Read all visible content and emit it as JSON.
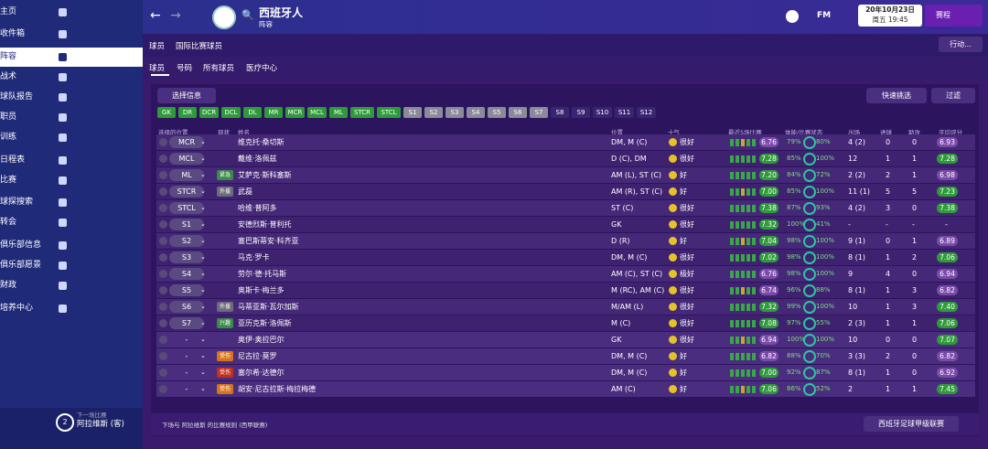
{
  "sidebar": {
    "items": [
      "主页",
      "收件箱",
      "阵容",
      "战术",
      "球队报告",
      "职员",
      "训练",
      "日程表",
      "比赛",
      "球探搜索",
      "转会",
      "俱乐部信息",
      "俱乐部愿景",
      "财政",
      "培养中心"
    ],
    "selected": 2,
    "next_match": {
      "label": "下一场比赛",
      "opponent": "阿拉维斯 (客)",
      "count": "2"
    }
  },
  "topbar": {
    "club": "西班牙人",
    "page": "阵容",
    "logo": "FM",
    "date": "20年10月23日",
    "time": "周五 19:45",
    "continue": "赛程"
  },
  "tabs": {
    "main": [
      "球员",
      "国际比赛球员"
    ],
    "sub": [
      "球员",
      "号码",
      "所有球员",
      "医疗中心"
    ],
    "action": "行动..."
  },
  "filters": {
    "select_info": "选择信息",
    "quick_pick": "快速挑选",
    "filter": "过滤",
    "chips_selected": [
      "GK",
      "DR",
      "DCR",
      "DCL",
      "DL",
      "MR",
      "MCR",
      "MCL",
      "ML",
      "STCR",
      "STCL"
    ],
    "chips_subs": [
      "S1",
      "S2",
      "S3",
      "S4",
      "S5",
      "S6",
      "S7"
    ],
    "chips_empty": [
      "S8",
      "S9",
      "S10",
      "S11",
      "S12"
    ]
  },
  "table": {
    "headers": [
      "选择的位置",
      "现状",
      "姓名",
      "位置",
      "士气",
      "最近5场比赛",
      "体能/比赛状态",
      "出场",
      "进球",
      "助攻",
      "平均评分"
    ],
    "rows": [
      {
        "slot": "MCR",
        "name": "维克托·桑切斯",
        "position": "DM, M (C)",
        "morale": "很好",
        "form": "6.76",
        "fitness": "79%",
        "condition": "80%",
        "apps": "4 (2)",
        "goals": "0",
        "assists": "0",
        "rating": "6.93"
      },
      {
        "slot": "MCL",
        "name": "戴维·洛佩兹",
        "position": "D (C), DM",
        "morale": "很好",
        "form": "7.28",
        "fitness": "85%",
        "condition": "100%",
        "apps": "12",
        "goals": "1",
        "assists": "1",
        "rating": "7.28"
      },
      {
        "slot": "ML",
        "status": "紧急",
        "name": "艾萨克·斯科塞斯",
        "position": "AM (L), ST (C)",
        "morale": "好",
        "form": "7.20",
        "fitness": "84%",
        "condition": "72%",
        "apps": "2 (2)",
        "goals": "2",
        "assists": "1",
        "rating": "6.98"
      },
      {
        "slot": "STCR",
        "status": "外援",
        "name": "武磊",
        "position": "AM (R), ST (C)",
        "morale": "好",
        "form": "7.00",
        "fitness": "85%",
        "condition": "100%",
        "apps": "11 (1)",
        "goals": "5",
        "assists": "5",
        "rating": "7.23"
      },
      {
        "slot": "STCL",
        "name": "哈维·普阿多",
        "position": "ST (C)",
        "morale": "很好",
        "form": "7.38",
        "fitness": "87%",
        "condition": "93%",
        "apps": "4 (2)",
        "goals": "3",
        "assists": "0",
        "rating": "7.38"
      },
      {
        "slot": "S1",
        "name": "安德烈斯·普利托",
        "position": "GK",
        "morale": "很好",
        "form": "7.32",
        "fitness": "100%",
        "condition": "41%",
        "apps": "-",
        "goals": "-",
        "assists": "-",
        "rating": "-"
      },
      {
        "slot": "S2",
        "name": "塞巴斯蒂安·科齐亚",
        "position": "D (R)",
        "morale": "好",
        "form": "7.04",
        "fitness": "98%",
        "condition": "100%",
        "apps": "9 (1)",
        "goals": "0",
        "assists": "1",
        "rating": "6.89"
      },
      {
        "slot": "S3",
        "name": "马克·罗卡",
        "position": "DM, M (C)",
        "morale": "很好",
        "form": "7.02",
        "fitness": "98%",
        "condition": "100%",
        "apps": "8 (1)",
        "goals": "1",
        "assists": "2",
        "rating": "7.06"
      },
      {
        "slot": "S4",
        "name": "劳尔·德·托马斯",
        "position": "AM (C), ST (C)",
        "morale": "极好",
        "form": "6.76",
        "fitness": "98%",
        "condition": "100%",
        "apps": "9",
        "goals": "4",
        "assists": "0",
        "rating": "6.94"
      },
      {
        "slot": "S5",
        "name": "奥斯卡·梅兰多",
        "position": "M (RC), AM (C)",
        "morale": "很好",
        "form": "6.74",
        "fitness": "96%",
        "condition": "88%",
        "apps": "8 (1)",
        "goals": "1",
        "assists": "3",
        "rating": "6.82"
      },
      {
        "slot": "S6",
        "status": "外援",
        "name": "马蒂亚斯·瓦尔加斯",
        "position": "M/AM (L)",
        "morale": "很好",
        "form": "7.32",
        "fitness": "99%",
        "condition": "100%",
        "apps": "10",
        "goals": "1",
        "assists": "3",
        "rating": "7.40"
      },
      {
        "slot": "S7",
        "status": "兴趣",
        "name": "亚历克斯·洛佩斯",
        "position": "M (C)",
        "morale": "很好",
        "form": "7.08",
        "fitness": "97%",
        "condition": "55%",
        "apps": "2 (3)",
        "goals": "1",
        "assists": "1",
        "rating": "7.06"
      },
      {
        "slot": "-",
        "name": "奥伊·奥拉巴尔",
        "position": "GK",
        "morale": "很好",
        "form": "6.94",
        "fitness": "100%",
        "condition": "100%",
        "apps": "10",
        "goals": "0",
        "assists": "0",
        "rating": "7.07"
      },
      {
        "slot": "-",
        "status": "受伤",
        "name": "尼古拉·莫罗",
        "position": "DM, M (C)",
        "morale": "好",
        "form": "6.82",
        "fitness": "88%",
        "condition": "70%",
        "apps": "3 (3)",
        "goals": "2",
        "assists": "0",
        "rating": "6.82"
      },
      {
        "slot": "-",
        "status": "受伤",
        "name": "塞尔希·达德尔",
        "position": "DM, M (C)",
        "morale": "好",
        "form": "7.00",
        "fitness": "92%",
        "condition": "87%",
        "apps": "8 (1)",
        "goals": "1",
        "assists": "0",
        "rating": "6.92"
      },
      {
        "slot": "-",
        "status": "受伤",
        "name": "胡安·尼古拉斯·梅拉梅德",
        "position": "AM (C)",
        "morale": "好",
        "form": "7.06",
        "fitness": "86%",
        "condition": "52%",
        "apps": "2",
        "goals": "1",
        "assists": "1",
        "rating": "7.45"
      }
    ]
  },
  "footer": {
    "rule": "下场与 阿拉维斯 的比赛规则 (西甲联赛)",
    "league": "西班牙足球甲级联赛"
  }
}
